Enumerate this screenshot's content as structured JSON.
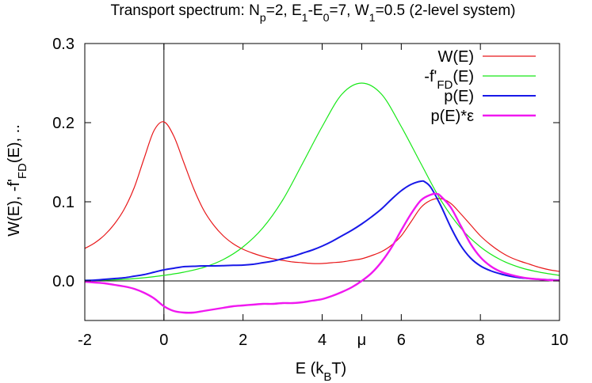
{
  "chart_data": {
    "type": "line",
    "title": {
      "parts": [
        {
          "t": "Transport spectrum: N"
        },
        {
          "t": "p",
          "sub": true
        },
        {
          "t": "=2, E"
        },
        {
          "t": "1",
          "sub": true
        },
        {
          "t": "-E"
        },
        {
          "t": "0",
          "sub": true
        },
        {
          "t": "=7, W"
        },
        {
          "t": "1",
          "sub": true
        },
        {
          "t": "=0.5 (2-level system)"
        }
      ]
    },
    "xlabel": {
      "parts": [
        {
          "t": "E (k"
        },
        {
          "t": "B",
          "sub": true
        },
        {
          "t": "T)"
        }
      ]
    },
    "ylabel": {
      "parts": [
        {
          "t": "W(E), -f'"
        },
        {
          "t": "FD",
          "sub": true
        },
        {
          "t": "(E), .."
        }
      ]
    },
    "xlim": [
      -2,
      10
    ],
    "ylim": [
      -0.05,
      0.3
    ],
    "xticks": [
      {
        "v": -2,
        "label": "-2"
      },
      {
        "v": 0,
        "label": "0"
      },
      {
        "v": 2,
        "label": "2"
      },
      {
        "v": 4,
        "label": "4"
      },
      {
        "v": 5,
        "label": "μ"
      },
      {
        "v": 6,
        "label": "6"
      },
      {
        "v": 8,
        "label": "8"
      },
      {
        "v": 10,
        "label": "10"
      }
    ],
    "yticks": [
      {
        "v": 0.0,
        "label": "0.0"
      },
      {
        "v": 0.1,
        "label": "0.1"
      },
      {
        "v": 0.2,
        "label": "0.2"
      },
      {
        "v": 0.3,
        "label": "0.3"
      }
    ],
    "reference_lines": {
      "x": 0,
      "y": 0
    },
    "grid": false,
    "legend_position": "top-right",
    "series": [
      {
        "name_parts": [
          {
            "t": "W(E)"
          }
        ],
        "color": "#e8181a",
        "width": 1.2,
        "x": [
          -2,
          -1.75,
          -1.5,
          -1.25,
          -1,
          -0.75,
          -0.5,
          -0.25,
          0,
          0.25,
          0.5,
          0.75,
          1,
          1.25,
          1.5,
          1.75,
          2,
          2.25,
          2.5,
          2.75,
          3,
          3.25,
          3.5,
          3.75,
          4,
          4.25,
          4.5,
          4.75,
          5,
          5.25,
          5.5,
          5.75,
          6,
          6.25,
          6.5,
          6.75,
          7,
          7.25,
          7.5,
          7.75,
          8,
          8.25,
          8.5,
          8.75,
          9,
          9.25,
          9.5,
          9.75,
          10
        ],
        "y": [
          0.041,
          0.048,
          0.058,
          0.072,
          0.091,
          0.118,
          0.155,
          0.19,
          0.201,
          0.183,
          0.15,
          0.117,
          0.09,
          0.071,
          0.057,
          0.047,
          0.04,
          0.035,
          0.031,
          0.028,
          0.026,
          0.024,
          0.023,
          0.022,
          0.022,
          0.023,
          0.024,
          0.026,
          0.028,
          0.032,
          0.037,
          0.045,
          0.057,
          0.075,
          0.093,
          0.102,
          0.104,
          0.098,
          0.085,
          0.071,
          0.057,
          0.046,
          0.037,
          0.03,
          0.025,
          0.021,
          0.017,
          0.014,
          0.012
        ]
      },
      {
        "name_parts": [
          {
            "t": "-f'"
          },
          {
            "t": "FD",
            "sub": true
          },
          {
            "t": "(E)"
          }
        ],
        "color": "#18e818",
        "width": 1.2,
        "x": [
          -2,
          -1.5,
          -1,
          -0.5,
          0,
          0.5,
          1,
          1.5,
          2,
          2.5,
          3,
          3.5,
          4,
          4.5,
          5,
          5.5,
          6,
          6.5,
          7,
          7.5,
          8,
          8.5,
          9,
          9.5,
          10
        ],
        "y": [
          0.001,
          0.001,
          0.002,
          0.004,
          0.007,
          0.011,
          0.017,
          0.027,
          0.043,
          0.067,
          0.102,
          0.148,
          0.195,
          0.236,
          0.25,
          0.236,
          0.195,
          0.148,
          0.102,
          0.067,
          0.043,
          0.027,
          0.017,
          0.011,
          0.007
        ]
      },
      {
        "name_parts": [
          {
            "t": "p(E)"
          }
        ],
        "color": "#1818e8",
        "width": 2,
        "x": [
          -2,
          -1.75,
          -1.5,
          -1.25,
          -1,
          -0.75,
          -0.5,
          -0.25,
          0,
          0.25,
          0.5,
          0.75,
          1,
          1.25,
          1.5,
          1.75,
          2,
          2.25,
          2.5,
          2.75,
          3,
          3.25,
          3.5,
          3.75,
          4,
          4.25,
          4.5,
          4.75,
          5,
          5.25,
          5.5,
          5.75,
          6,
          6.25,
          6.5,
          6.6,
          6.75,
          7,
          7.25,
          7.5,
          7.75,
          8,
          8.25,
          8.5,
          8.75,
          9,
          9.25,
          9.5,
          9.75,
          10
        ],
        "y": [
          0.0005,
          0.001,
          0.002,
          0.003,
          0.004,
          0.006,
          0.008,
          0.011,
          0.014,
          0.016,
          0.018,
          0.0185,
          0.019,
          0.019,
          0.0193,
          0.0197,
          0.02,
          0.021,
          0.023,
          0.025,
          0.028,
          0.031,
          0.035,
          0.039,
          0.044,
          0.05,
          0.057,
          0.064,
          0.072,
          0.081,
          0.091,
          0.103,
          0.114,
          0.122,
          0.126,
          0.125,
          0.118,
          0.095,
          0.068,
          0.045,
          0.029,
          0.019,
          0.013,
          0.009,
          0.006,
          0.004,
          0.003,
          0.002,
          0.0015,
          0.001
        ]
      },
      {
        "name_parts": [
          {
            "t": "p(E)*ε"
          }
        ],
        "color": "#f018f0",
        "width": 2.4,
        "x": [
          -2,
          -1.75,
          -1.5,
          -1.25,
          -1,
          -0.75,
          -0.5,
          -0.25,
          0,
          0.25,
          0.5,
          0.75,
          1,
          1.25,
          1.5,
          1.75,
          2,
          2.25,
          2.5,
          2.75,
          3,
          3.25,
          3.5,
          3.75,
          4,
          4.25,
          4.5,
          4.75,
          5,
          5.25,
          5.5,
          5.75,
          6,
          6.25,
          6.5,
          6.75,
          6.9,
          7,
          7.25,
          7.5,
          7.75,
          8,
          8.25,
          8.5,
          8.75,
          9,
          9.25,
          9.5,
          9.75,
          10
        ],
        "y": [
          -0.001,
          -0.002,
          -0.003,
          -0.005,
          -0.007,
          -0.01,
          -0.015,
          -0.022,
          -0.032,
          -0.038,
          -0.04,
          -0.04,
          -0.038,
          -0.036,
          -0.034,
          -0.032,
          -0.031,
          -0.03,
          -0.029,
          -0.029,
          -0.028,
          -0.028,
          -0.027,
          -0.025,
          -0.023,
          -0.019,
          -0.014,
          -0.008,
          0.0,
          0.01,
          0.024,
          0.042,
          0.064,
          0.085,
          0.102,
          0.109,
          0.11,
          0.107,
          0.093,
          0.07,
          0.047,
          0.03,
          0.019,
          0.012,
          0.008,
          0.005,
          0.003,
          0.002,
          0.001,
          0.0005
        ]
      }
    ]
  }
}
